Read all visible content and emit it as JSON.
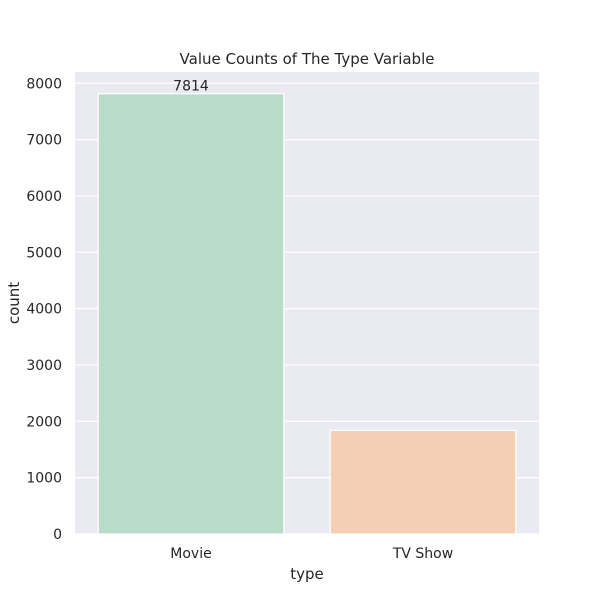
{
  "chart_data": {
    "type": "bar",
    "title": "Value Counts of The Type Variable",
    "xlabel": "type",
    "ylabel": "count",
    "categories": [
      "Movie",
      "TV Show"
    ],
    "values": [
      7814,
      1840
    ],
    "data_labels": [
      "7814",
      ""
    ],
    "colors": [
      "#b9dcca",
      "#f4cfb3"
    ],
    "ylim": [
      0,
      8200
    ],
    "yticks": [
      0,
      1000,
      2000,
      3000,
      4000,
      5000,
      6000,
      7000,
      8000
    ],
    "grid": true,
    "background": "#eaeaf2",
    "grid_color": "#ffffff"
  }
}
